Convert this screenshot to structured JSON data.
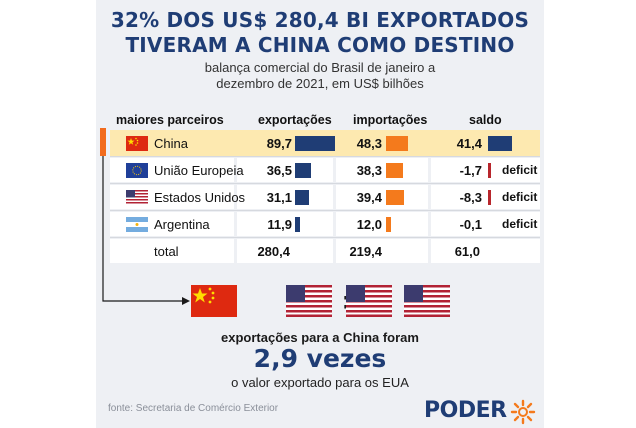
{
  "header": {
    "title_line1": "32% DOS US$ 280,4 BI EXPORTADOS",
    "title_line2": "TIVERAM A CHINA COMO DESTINO",
    "subtitle_line1": "balança comercial do Brasil de janeiro a",
    "subtitle_line2": "dezembro de 2021, em US$ bilhões"
  },
  "chart_data": {
    "type": "table",
    "columns": [
      "maiores parceiros",
      "exportações",
      "importações",
      "saldo"
    ],
    "rows": [
      {
        "partner": "China",
        "flag": "china-flag-icon",
        "exports": "89,7",
        "exports_value": 89.7,
        "imports": "48,3",
        "imports_value": 48.3,
        "balance": "41,4",
        "balance_value": 41.4,
        "note": "",
        "highlight": true
      },
      {
        "partner": "União Europeia",
        "flag": "eu-flag-icon",
        "exports": "36,5",
        "exports_value": 36.5,
        "imports": "38,3",
        "imports_value": 38.3,
        "balance": "-1,7",
        "balance_value": -1.7,
        "note": "deficit",
        "highlight": false
      },
      {
        "partner": "Estados Unidos",
        "flag": "usa-flag-icon",
        "exports": "31,1",
        "exports_value": 31.1,
        "imports": "39,4",
        "imports_value": 39.4,
        "balance": "-8,3",
        "balance_value": -8.3,
        "note": "deficit",
        "highlight": false
      },
      {
        "partner": "Argentina",
        "flag": "argentina-flag-icon",
        "exports": "11,9",
        "exports_value": 11.9,
        "imports": "12,0",
        "imports_value": 12.0,
        "balance": "-0,1",
        "balance_value": -0.1,
        "note": "deficit",
        "highlight": false
      }
    ],
    "total": {
      "label": "total",
      "exports": "280,4",
      "imports": "219,4",
      "balance": "61,0"
    }
  },
  "comparison": {
    "line1": "exportações para a China foram",
    "big": "2,9 vezes",
    "line3": "o valor exportado para os EUA",
    "equals": "="
  },
  "footer": {
    "source": "fonte: Secretaria de Comércio Exterior",
    "logo": "PODER"
  },
  "colors": {
    "navy": "#1f3d75",
    "orange": "#f47a1c",
    "red": "#b8262c",
    "highlight": "#fde9b0"
  }
}
